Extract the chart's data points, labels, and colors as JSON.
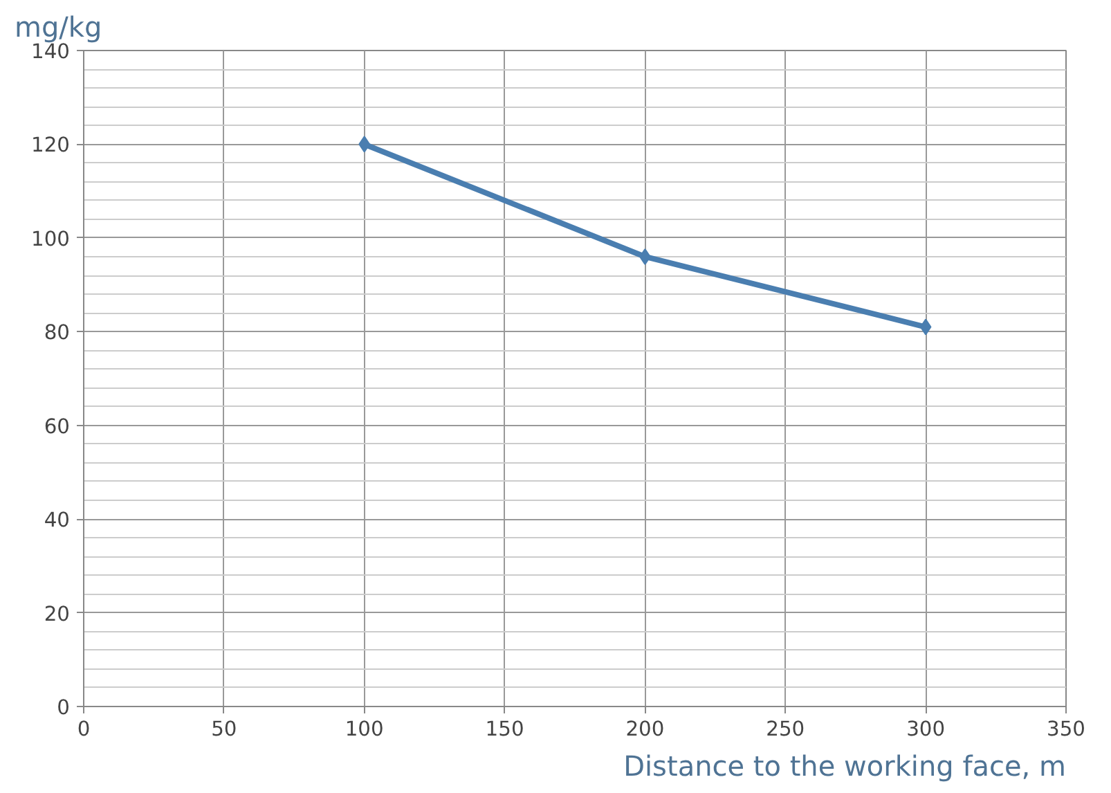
{
  "chart_data": {
    "type": "line",
    "xlabel": "Distance to the working face, m",
    "ylabel": "mg/kg",
    "x": [
      100,
      200,
      300
    ],
    "series": [
      {
        "color": "#4a7eb0",
        "values": [
          120,
          96,
          81
        ]
      }
    ],
    "xlim": [
      0,
      350
    ],
    "xticks": [
      0,
      50,
      100,
      150,
      200,
      250,
      300,
      350
    ],
    "ylim": [
      0,
      140
    ],
    "yticks": [
      0,
      20,
      40,
      60,
      80,
      100,
      120,
      140
    ],
    "grid": true,
    "marker": "diamond",
    "line_style": "solid"
  }
}
